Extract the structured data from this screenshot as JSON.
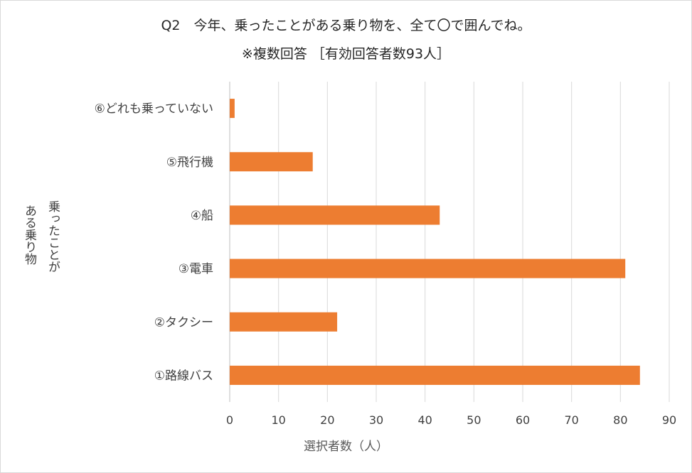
{
  "chart_data": {
    "type": "bar",
    "orientation": "horizontal",
    "title": "Q2　今年、乗ったことがある乗り物を、全て〇で囲んでね。",
    "subtitle": "※複数回答 ［有効回答者数93人］",
    "xlabel": "選択者数（人）",
    "ylabel_lines": [
      "乗ったことが",
      "ある乗り物"
    ],
    "categories": [
      "①路線バス",
      "②タクシー",
      "③電車",
      "④船",
      "⑤飛行機",
      "⑥どれも乗っていない"
    ],
    "values": [
      84,
      22,
      81,
      43,
      17,
      1
    ],
    "xlim": [
      0,
      90
    ],
    "xticks": [
      0,
      10,
      20,
      30,
      40,
      50,
      60,
      70,
      80,
      90
    ],
    "grid": true,
    "legend": "none",
    "colors": {
      "bar": "#ED7D31",
      "grid": "#d9d9d9",
      "axis": "#bfbfbf"
    }
  }
}
